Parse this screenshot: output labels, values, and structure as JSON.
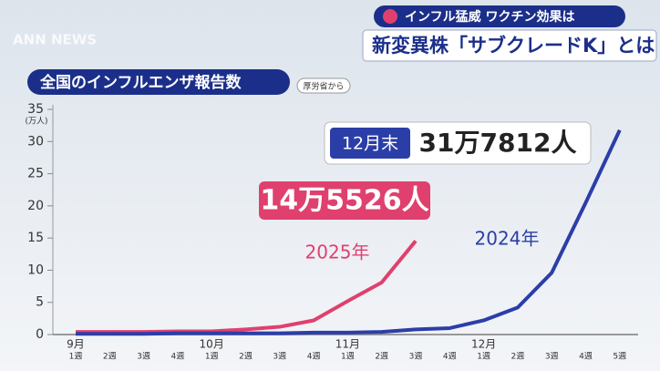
{
  "header": {
    "logo": "ANN NEWS",
    "topic": "インフル猛威 ワクチン効果は",
    "headline": "新変異株「サブクレードK」とは"
  },
  "chart_data": {
    "type": "line",
    "title": "全国のインフルエンザ報告数",
    "source": "厚労省から",
    "y_unit": "(万人)",
    "categories": [
      "1週",
      "2週",
      "3週",
      "4週",
      "1週",
      "2週",
      "3週",
      "4週",
      "1週",
      "2週",
      "3週",
      "4週",
      "1週",
      "2週",
      "3週",
      "4週",
      "5週"
    ],
    "months": [
      {
        "label": "9月",
        "start": 0
      },
      {
        "label": "10月",
        "start": 4
      },
      {
        "label": "11月",
        "start": 8
      },
      {
        "label": "12月",
        "start": 12
      }
    ],
    "ylim": [
      0,
      35
    ],
    "yticks": [
      0,
      5,
      10,
      15,
      20,
      25,
      30,
      35
    ],
    "series": [
      {
        "name": "2025年",
        "color": "#e0406e",
        "values": [
          0.4,
          0.4,
          0.4,
          0.5,
          0.5,
          0.8,
          1.2,
          2.2,
          5.2,
          8.1,
          14.5526,
          null,
          null,
          null,
          null,
          null,
          null
        ],
        "value_labels": [
          null,
          null,
          null,
          null,
          null,
          null,
          null,
          null,
          null,
          null,
          "14万5526人",
          null,
          null,
          null,
          null,
          null,
          null
        ]
      },
      {
        "name": "2024年",
        "color": "#2b3ea8",
        "values": [
          0.1,
          0.1,
          0.1,
          0.2,
          0.2,
          0.2,
          0.2,
          0.3,
          0.3,
          0.4,
          0.8,
          1.0,
          2.2,
          4.2,
          9.6,
          20.5,
          31.7812
        ],
        "value_labels": [
          null,
          null,
          null,
          null,
          null,
          null,
          null,
          null,
          null,
          null,
          null,
          null,
          null,
          null,
          null,
          null,
          "31万7812人"
        ],
        "annotation": "12月末"
      }
    ]
  }
}
